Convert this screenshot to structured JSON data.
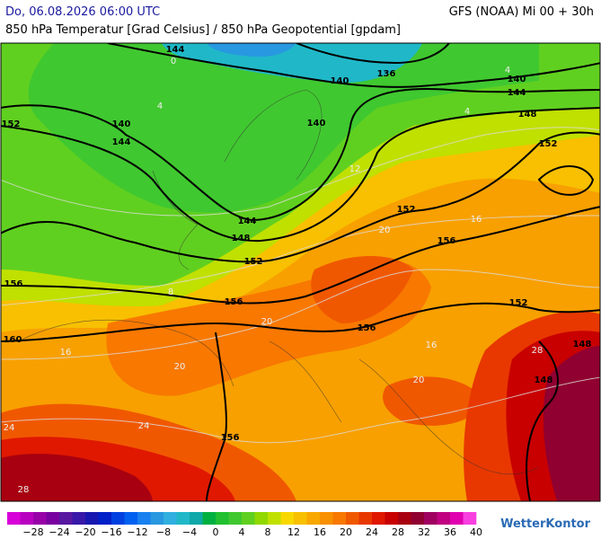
{
  "header": {
    "date": "Do, 06.08.2026 06:00 UTC",
    "model": "GFS (NOAA) Mi 00 + 30h",
    "subtitle": "850 hPa Temperatur [Grad Celsius] / 850 hPa Geopotential [gpdam]"
  },
  "map": {
    "geopotential_labels": [
      "144",
      "136",
      "140",
      "140",
      "144",
      "152",
      "140",
      "144",
      "140",
      "148",
      "152",
      "144",
      "148",
      "152",
      "152",
      "156",
      "156",
      "156",
      "156",
      "152",
      "160",
      "148",
      "148",
      "156"
    ],
    "temperature_labels": [
      "0",
      "4",
      "4",
      "4",
      "8",
      "12",
      "16",
      "16",
      "16",
      "20",
      "20",
      "20",
      "20",
      "24",
      "24",
      "28",
      "28"
    ]
  },
  "colorbar": {
    "colors": [
      "#d800d8",
      "#b800c0",
      "#9800a8",
      "#7800a0",
      "#5818a0",
      "#3818a8",
      "#1818b0",
      "#0020c8",
      "#0040e0",
      "#0060f0",
      "#1880f0",
      "#2898e0",
      "#30b0e0",
      "#20b8c8",
      "#10a8a8",
      "#00b040",
      "#20c030",
      "#40c830",
      "#60d020",
      "#90d800",
      "#c0e000",
      "#f8d800",
      "#f8c000",
      "#f8a800",
      "#f89000",
      "#f87800",
      "#f05800",
      "#e83800",
      "#e01800",
      "#c80000",
      "#a80010",
      "#900030",
      "#a00060",
      "#c00080",
      "#e000b0",
      "#f840e0"
    ],
    "tick_labels": [
      "−28",
      "−24",
      "−20",
      "−16",
      "−12",
      "−8",
      "−4",
      "0",
      "4",
      "8",
      "12",
      "16",
      "20",
      "24",
      "28",
      "32",
      "36",
      "40"
    ]
  },
  "logo": "WetterKontor"
}
